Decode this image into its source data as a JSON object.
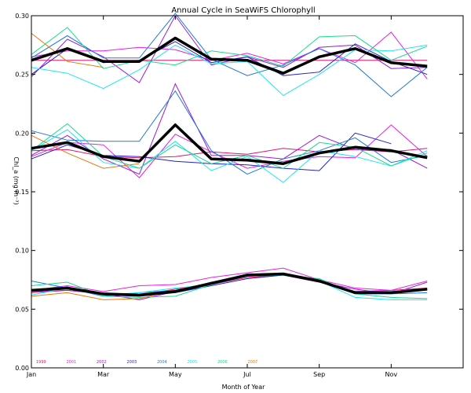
{
  "chart_data": {
    "type": "line",
    "title": "Annual Cycle in SeaWiFS Chlorophyll",
    "xlabel": "Month of Year",
    "ylabel": "Chl_a (mg m⁻³)",
    "x_tick_labels": [
      "Jan",
      "Mar",
      "May",
      "Jul",
      "Sep",
      "Nov"
    ],
    "x_tick_positions": [
      1,
      3,
      5,
      7,
      9,
      11
    ],
    "xlim": [
      1,
      13
    ],
    "ylim": [
      0,
      0.3
    ],
    "y_ticks": [
      0.0,
      0.05,
      0.1,
      0.15,
      0.2,
      0.25,
      0.3
    ],
    "y_tick_labels": [
      "0.00",
      "0.05",
      "0.10",
      "0.15",
      "0.20",
      "0.25",
      "0.30"
    ],
    "grid": false,
    "legend_placement": "bottom-left",
    "legend_entries": [
      {
        "label": "1999",
        "color": "#e0146e"
      },
      {
        "label": "2001",
        "color": "#e81ee8"
      },
      {
        "label": "2002",
        "color": "#9a1cd6"
      },
      {
        "label": "2003",
        "color": "#2222c8"
      },
      {
        "label": "2004",
        "color": "#1e78dc"
      },
      {
        "label": "2005",
        "color": "#1ee6f0"
      },
      {
        "label": "2006",
        "color": "#14dc8c"
      },
      {
        "label": "2007",
        "color": "#e8780a"
      }
    ],
    "groups": [
      {
        "mean": [
          0.262,
          0.272,
          0.261,
          0.261,
          0.281,
          0.263,
          0.262,
          0.251,
          0.265,
          0.272,
          0.26,
          0.257
        ],
        "series": [
          {
            "year": "1999",
            "color": "#e0146e",
            "values": [
              0.262,
              0.262,
              0.262,
              0.262,
              0.262,
              0.262,
              0.262,
              0.262,
              0.262,
              0.262,
              0.262,
              0.262
            ]
          },
          {
            "year": "2001",
            "color": "#e81ee8",
            "values": [
              0.265,
              0.27,
              0.27,
              0.273,
              0.271,
              0.262,
              0.268,
              0.259,
              0.272,
              0.26,
              0.286,
              0.246
            ]
          },
          {
            "year": "2002",
            "color": "#9a1cd6",
            "values": [
              0.248,
              0.28,
              0.265,
              0.243,
              0.3,
              0.258,
              0.265,
              0.256,
              0.273,
              0.275,
              0.255,
              0.256
            ]
          },
          {
            "year": "2003",
            "color": "#2222c8",
            "values": [
              0.25,
              0.272,
              0.26,
              0.262,
              0.278,
              0.26,
              0.265,
              0.249,
              0.252,
              0.276,
              0.261,
              0.25
            ]
          },
          {
            "year": "2004",
            "color": "#1e78dc",
            "values": [
              0.264,
              0.283,
              0.264,
              0.264,
              0.302,
              0.263,
              0.249,
              0.258,
              0.272,
              0.258,
              0.231,
              0.256
            ]
          },
          {
            "year": "2005",
            "color": "#1ee6f0",
            "values": [
              0.256,
              0.251,
              0.238,
              0.254,
              0.275,
              0.259,
              0.261,
              0.232,
              0.25,
              0.271,
              0.27,
              0.275
            ]
          },
          {
            "year": "2006",
            "color": "#14dc8c",
            "values": [
              0.267,
              0.29,
              0.255,
              0.262,
              0.258,
              0.27,
              0.266,
              0.257,
              0.282,
              0.283,
              0.262,
              0.274
            ]
          },
          {
            "year": "2007",
            "color": "#e8780a",
            "values": [
              0.285,
              0.261,
              0.256,
              null,
              null,
              null,
              null,
              null,
              null,
              null,
              null,
              null
            ]
          }
        ]
      },
      {
        "mean": [
          0.187,
          0.192,
          0.18,
          0.176,
          0.207,
          0.178,
          0.177,
          0.174,
          0.183,
          0.188,
          0.185,
          0.179
        ],
        "series": [
          {
            "year": "1999",
            "color": "#e0146e",
            "values": [
              0.185,
              0.186,
              0.18,
              0.179,
              0.18,
              0.184,
              0.182,
              0.187,
              0.184,
              0.186,
              0.184,
              0.187
            ]
          },
          {
            "year": "2001",
            "color": "#e81ee8",
            "values": [
              0.18,
              0.192,
              0.19,
              0.162,
              0.199,
              0.184,
              0.17,
              0.176,
              0.18,
              0.179,
              0.207,
              0.18
            ]
          },
          {
            "year": "2002",
            "color": "#9a1cd6",
            "values": [
              0.181,
              0.198,
              0.178,
              0.165,
              0.242,
              0.181,
              0.181,
              0.178,
              0.198,
              0.186,
              0.186,
              0.17
            ]
          },
          {
            "year": "2003",
            "color": "#2222c8",
            "values": [
              0.178,
              0.19,
              0.181,
              0.18,
              0.176,
              0.174,
              0.173,
              0.17,
              0.168,
              0.2,
              0.191,
              null
            ]
          },
          {
            "year": "2004",
            "color": "#1e78dc",
            "values": [
              0.202,
              0.194,
              0.193,
              0.193,
              0.236,
              0.185,
              0.165,
              0.178,
              0.185,
              0.196,
              0.175,
              0.181
            ]
          },
          {
            "year": "2005",
            "color": "#1ee6f0",
            "values": [
              0.185,
              0.203,
              0.175,
              0.17,
              0.193,
              0.168,
              0.18,
              0.158,
              0.185,
              0.18,
              0.172,
              0.185
            ]
          },
          {
            "year": "2006",
            "color": "#14dc8c",
            "values": [
              0.185,
              0.208,
              0.18,
              0.17,
              0.19,
              0.174,
              0.181,
              0.17,
              0.192,
              0.188,
              0.172,
              0.183
            ]
          },
          {
            "year": "2007",
            "color": "#e8780a",
            "values": [
              0.198,
              0.183,
              0.17,
              0.174,
              null,
              null,
              null,
              null,
              null,
              null,
              null,
              null
            ]
          }
        ]
      },
      {
        "mean": [
          0.066,
          0.068,
          0.063,
          0.062,
          0.065,
          0.072,
          0.079,
          0.08,
          0.074,
          0.064,
          0.064,
          0.067
        ],
        "series": [
          {
            "year": "1999",
            "color": "#e0146e",
            "values": [
              0.064,
              0.066,
              0.063,
              0.062,
              0.067,
              0.071,
              0.077,
              0.079,
              0.073,
              0.065,
              0.066,
              0.068
            ]
          },
          {
            "year": "2001",
            "color": "#e81ee8",
            "values": [
              0.066,
              0.07,
              0.065,
              0.07,
              0.071,
              0.077,
              0.081,
              0.085,
              0.075,
              0.068,
              0.066,
              0.074
            ]
          },
          {
            "year": "2002",
            "color": "#9a1cd6",
            "values": [
              0.065,
              0.066,
              0.063,
              0.058,
              0.065,
              0.073,
              0.079,
              0.079,
              0.073,
              0.067,
              0.063,
              0.073
            ]
          },
          {
            "year": "2003",
            "color": "#2222c8",
            "values": [
              0.066,
              0.069,
              0.062,
              0.061,
              0.064,
              0.07,
              0.076,
              0.079,
              0.074,
              0.065,
              0.065,
              0.067
            ]
          },
          {
            "year": "2004",
            "color": "#1e78dc",
            "values": [
              0.074,
              0.068,
              0.061,
              0.064,
              0.066,
              0.072,
              0.08,
              0.08,
              0.075,
              0.063,
              0.063,
              0.064
            ]
          },
          {
            "year": "2005",
            "color": "#1ee6f0",
            "values": [
              0.062,
              0.068,
              0.062,
              0.064,
              0.068,
              0.071,
              0.078,
              0.079,
              0.074,
              0.06,
              0.058,
              0.058
            ]
          },
          {
            "year": "2006",
            "color": "#14dc8c",
            "values": [
              0.07,
              0.073,
              0.061,
              0.06,
              0.061,
              0.071,
              0.079,
              0.079,
              0.076,
              0.063,
              0.06,
              0.059
            ]
          },
          {
            "year": "2007",
            "color": "#e8780a",
            "values": [
              0.061,
              0.064,
              0.058,
              0.059,
              0.066,
              null,
              null,
              null,
              null,
              null,
              null,
              null
            ]
          }
        ]
      }
    ]
  }
}
